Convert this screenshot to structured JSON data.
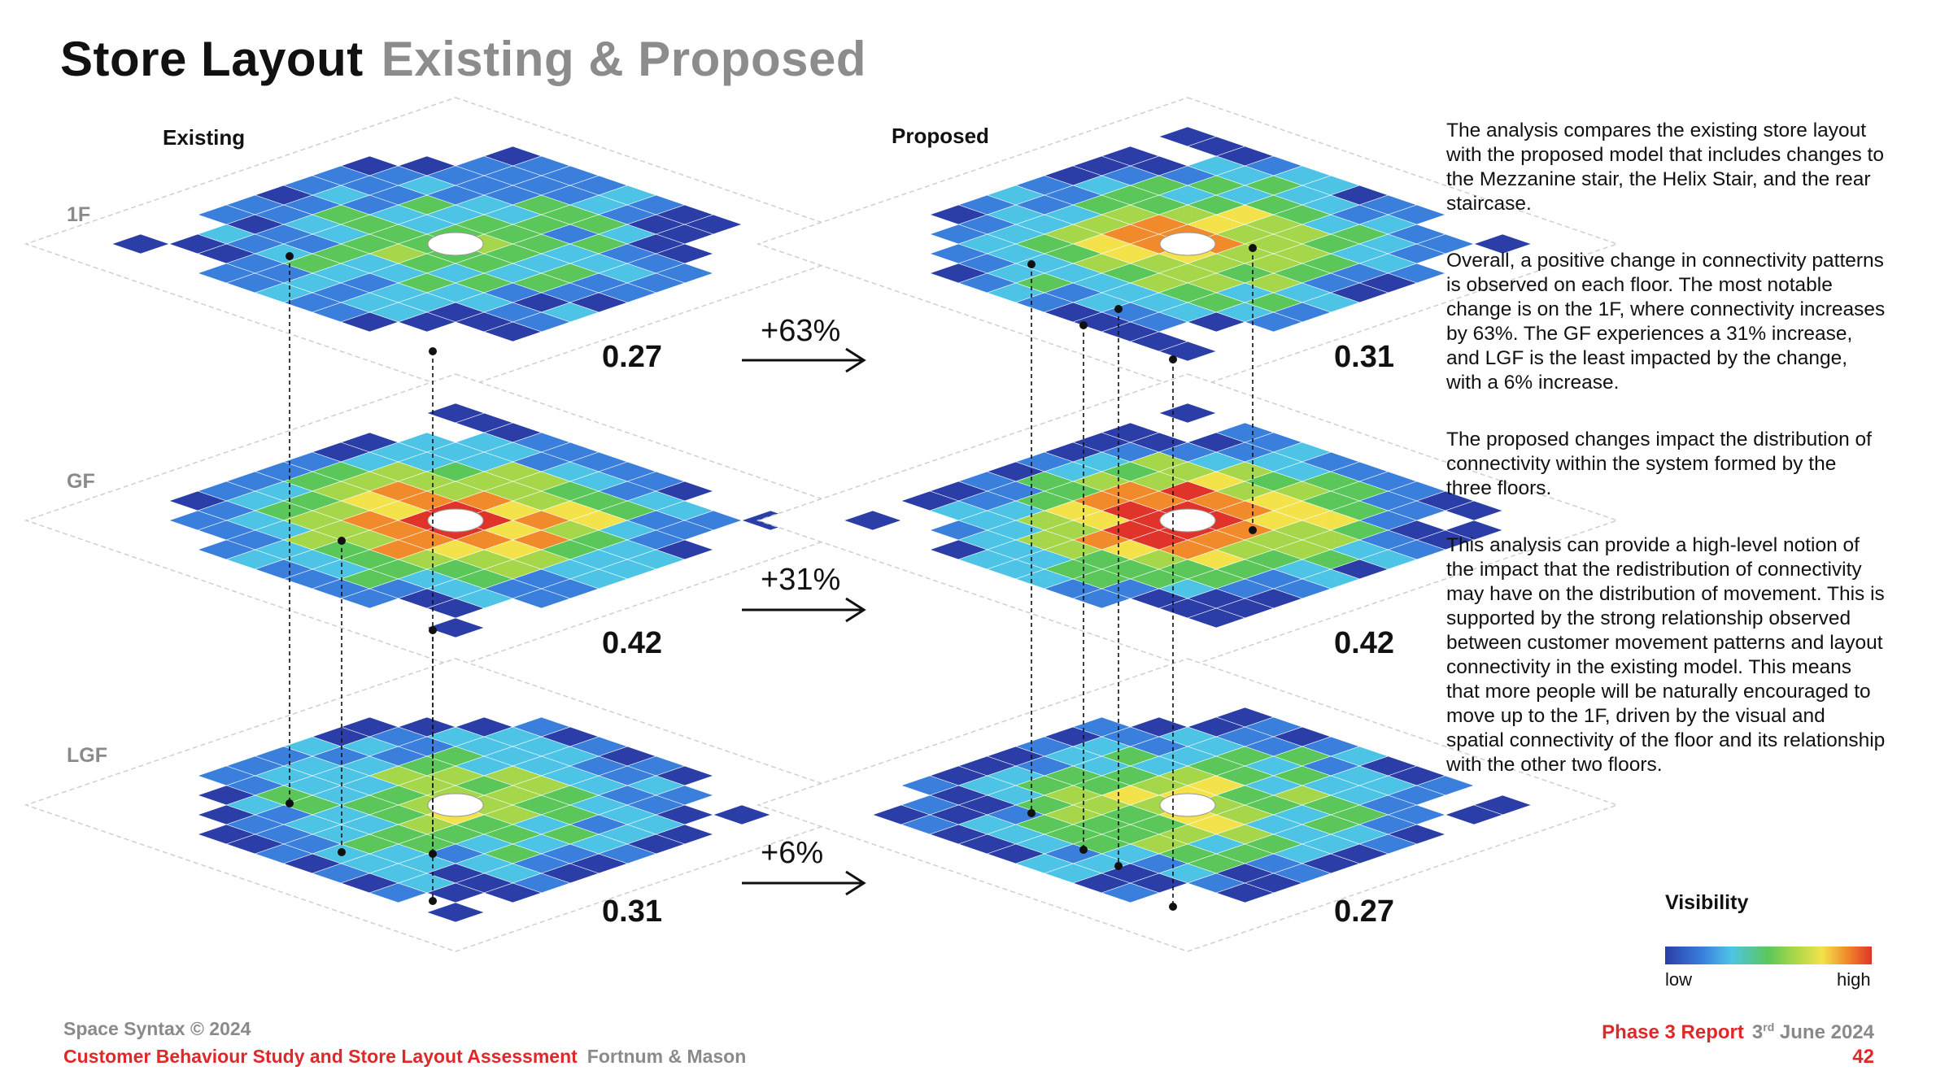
{
  "header": {
    "title_main": "Store Layout",
    "title_sub": "Existing & Proposed"
  },
  "columns": {
    "existing": "Existing",
    "proposed": "Proposed"
  },
  "floors": [
    "1F",
    "GF",
    "LGF"
  ],
  "values": {
    "existing": [
      "0.27",
      "0.42",
      "0.31"
    ],
    "proposed": [
      "0.31",
      "0.42",
      "0.27"
    ]
  },
  "changes": [
    "+63%",
    "+31%",
    "+6%"
  ],
  "description": [
    "The analysis compares the existing store layout with the proposed model that includes changes to the Mezzanine stair, the Helix Stair, and the rear staircase.",
    "Overall, a positive change in connectivity patterns is observed on each floor. The most notable change is on the 1F, where connectivity increases by 63%. The GF experiences a 31% increase, and LGF is the least impacted by the change, with a 6% increase.",
    "The proposed changes impact the distribution of connectivity within the system formed by the three floors.",
    "This analysis can provide a high-level notion of the impact that the redistribution of connectivity may have on the distribution of movement. This is supported by the strong relationship observed between customer movement patterns and layout connectivity in the existing model. This means that more people will be naturally encouraged to move up to the 1F, driven by the visual and spatial connectivity of the floor and its relationship with the other two floors."
  ],
  "legend": {
    "title": "Visibility",
    "low": "low",
    "high": "high",
    "colors": [
      "#2b3ea8",
      "#3a7fdc",
      "#4dc4e6",
      "#5bc75a",
      "#a6d64a",
      "#f3e24a",
      "#f08a2b",
      "#e0342a"
    ]
  },
  "footer": {
    "copyright": "Space Syntax © 2024",
    "study": "Customer Behaviour Study and Store Layout Assessment",
    "client": "Fortnum & Mason",
    "report": "Phase 3 Report",
    "date_day": "3",
    "date_suffix": "rd",
    "date_rest": "June 2024",
    "page": "42"
  }
}
